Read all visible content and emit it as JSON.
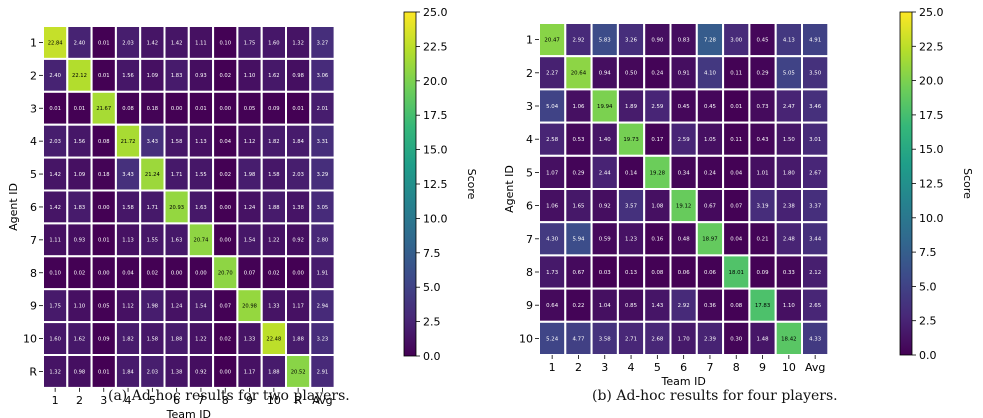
{
  "colorbar": {
    "label": "Score",
    "ticks": [
      "0.0",
      "2.5",
      "5.0",
      "7.5",
      "10.0",
      "12.5",
      "15.0",
      "17.5",
      "20.0",
      "22.5",
      "25.0"
    ],
    "stops": [
      "#440154",
      "#482878",
      "#3e4989",
      "#31688e",
      "#26828e",
      "#1f9e89",
      "#35b779",
      "#6ece58",
      "#b5de2b",
      "#fde725"
    ]
  },
  "captions": [
    "(a) Ad-hoc results for two players.",
    "(b) Ad-hoc results for four players."
  ],
  "chart_data": [
    {
      "type": "heatmap",
      "xlabel": "Team ID",
      "ylabel": "Agent ID",
      "x_categories": [
        "1",
        "2",
        "3",
        "4",
        "5",
        "6",
        "7",
        "8",
        "9",
        "10",
        "R",
        "Avg"
      ],
      "y_categories": [
        "1",
        "2",
        "3",
        "4",
        "5",
        "6",
        "7",
        "8",
        "9",
        "10",
        "R"
      ],
      "value_range": [
        0,
        25
      ],
      "colormap": "viridis",
      "values": [
        [
          22.84,
          2.4,
          0.01,
          2.03,
          1.42,
          1.42,
          1.11,
          0.1,
          1.75,
          1.6,
          1.32,
          3.27
        ],
        [
          2.4,
          22.12,
          0.01,
          1.56,
          1.09,
          1.83,
          0.93,
          0.02,
          1.1,
          1.62,
          0.98,
          3.06
        ],
        [
          0.01,
          0.01,
          21.67,
          0.08,
          0.18,
          0.0,
          0.01,
          0.0,
          0.05,
          0.09,
          0.01,
          2.01
        ],
        [
          2.03,
          1.56,
          0.08,
          21.72,
          3.43,
          1.58,
          1.13,
          0.04,
          1.12,
          1.82,
          1.84,
          3.31
        ],
        [
          1.42,
          1.09,
          0.18,
          3.43,
          21.24,
          1.71,
          1.55,
          0.02,
          1.98,
          1.58,
          2.03,
          3.29
        ],
        [
          1.42,
          1.83,
          0.0,
          1.58,
          1.71,
          20.93,
          1.63,
          0.0,
          1.24,
          1.88,
          1.38,
          3.05
        ],
        [
          1.11,
          0.93,
          0.01,
          1.13,
          1.55,
          1.63,
          20.74,
          0.0,
          1.54,
          1.22,
          0.92,
          2.8
        ],
        [
          0.1,
          0.02,
          0.0,
          0.04,
          0.02,
          0.0,
          0.0,
          20.7,
          0.07,
          0.02,
          0.0,
          1.91
        ],
        [
          1.75,
          1.1,
          0.05,
          1.12,
          1.98,
          1.24,
          1.54,
          0.07,
          20.98,
          1.33,
          1.17,
          2.94
        ],
        [
          1.6,
          1.62,
          0.09,
          1.82,
          1.58,
          1.88,
          1.22,
          0.02,
          1.33,
          22.48,
          1.88,
          3.23
        ],
        [
          1.32,
          0.98,
          0.01,
          1.84,
          2.03,
          1.38,
          0.92,
          0.0,
          1.17,
          1.88,
          20.52,
          2.91
        ]
      ]
    },
    {
      "type": "heatmap",
      "xlabel": "Team ID",
      "ylabel": "Agent ID",
      "x_categories": [
        "1",
        "2",
        "3",
        "4",
        "5",
        "6",
        "7",
        "8",
        "9",
        "10",
        "Avg"
      ],
      "y_categories": [
        "1",
        "2",
        "3",
        "4",
        "5",
        "6",
        "7",
        "8",
        "9",
        "10"
      ],
      "value_range": [
        0,
        25
      ],
      "colormap": "viridis",
      "values": [
        [
          20.47,
          2.92,
          5.83,
          3.26,
          0.9,
          0.83,
          7.28,
          3.0,
          0.45,
          4.13,
          4.91
        ],
        [
          2.27,
          20.64,
          0.94,
          0.5,
          0.24,
          0.91,
          4.1,
          0.11,
          0.29,
          5.05,
          3.5
        ],
        [
          5.04,
          1.06,
          19.94,
          1.89,
          2.59,
          0.45,
          0.45,
          0.01,
          0.73,
          2.47,
          3.46
        ],
        [
          2.58,
          0.53,
          1.4,
          19.73,
          0.17,
          2.59,
          1.05,
          0.11,
          0.43,
          1.5,
          3.01
        ],
        [
          1.07,
          0.29,
          2.44,
          0.14,
          19.28,
          0.34,
          0.24,
          0.04,
          1.01,
          1.8,
          2.67
        ],
        [
          1.06,
          1.65,
          0.92,
          3.57,
          1.08,
          19.12,
          0.67,
          0.07,
          3.19,
          2.38,
          3.37
        ],
        [
          4.3,
          5.94,
          0.59,
          1.23,
          0.16,
          0.48,
          18.97,
          0.04,
          0.21,
          2.48,
          3.44
        ],
        [
          1.73,
          0.67,
          0.03,
          0.13,
          0.08,
          0.06,
          0.06,
          18.01,
          0.09,
          0.33,
          2.12
        ],
        [
          0.64,
          0.22,
          1.04,
          0.85,
          1.43,
          2.92,
          0.36,
          0.08,
          17.83,
          1.1,
          2.65
        ],
        [
          5.24,
          4.77,
          3.58,
          2.71,
          2.68,
          1.7,
          2.39,
          0.3,
          1.48,
          18.42,
          4.33
        ]
      ]
    }
  ]
}
